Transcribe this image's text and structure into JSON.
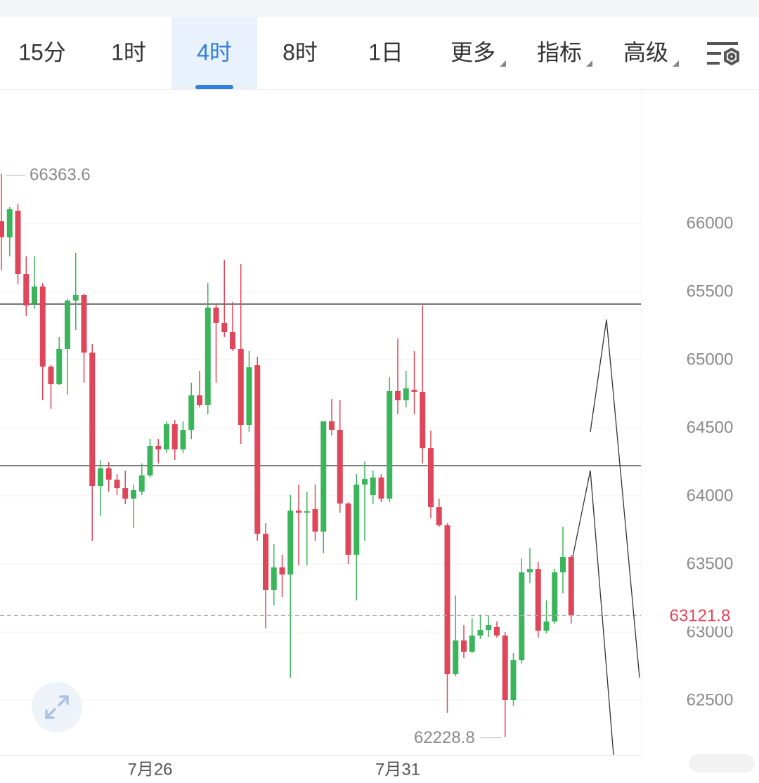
{
  "tabs": [
    "15分",
    "1时",
    "4时",
    "8时",
    "1日",
    "更多",
    "指标",
    "高级"
  ],
  "active_tab": 2,
  "chart_data": {
    "type": "candlestick",
    "categories": [
      null,
      null,
      null,
      null,
      null,
      null,
      null,
      null,
      null,
      null,
      null,
      null,
      null,
      null,
      null,
      null,
      null,
      null,
      "7月26",
      null,
      null,
      null,
      null,
      null,
      null,
      null,
      null,
      null,
      null,
      null,
      null,
      null,
      null,
      null,
      null,
      null,
      null,
      null,
      null,
      null,
      null,
      null,
      null,
      null,
      null,
      null,
      null,
      null,
      "7月31",
      null,
      null,
      null,
      null,
      null,
      null,
      null,
      null,
      null,
      null,
      null,
      null,
      null,
      null,
      null,
      null,
      null,
      null,
      null,
      null,
      null
    ],
    "open": [
      66015,
      65897,
      66092,
      65628,
      65412,
      65536,
      64948,
      64819,
      65077,
      65433,
      65474,
      65051,
      64072,
      64201,
      64118,
      64056,
      63979,
      64031,
      64149,
      64366,
      64340,
      64525,
      64340,
      64484,
      64737,
      64665,
      65381,
      65268,
      65201,
      65077,
      64520,
      64958,
      63721,
      63309,
      63474,
      63422,
      63891,
      63876,
      63902,
      63737,
      64546,
      64484,
      63943,
      63567,
      64082,
      64005,
      64134,
      63979,
      64768,
      64701,
      64778,
      64763,
      64350,
      63917,
      63783,
      62690,
      62938,
      62855,
      62974,
      63015,
      63036,
      62974,
      62500,
      62793,
      63438,
      63463,
      63010,
      63077,
      63438,
      63551
    ],
    "high": [
      66363.6,
      66118,
      66144,
      65757,
      65757,
      65561,
      64958,
      65165,
      65448,
      65783,
      65484,
      65113,
      64263,
      64247,
      64159,
      64185,
      64082,
      64237,
      64417,
      64417,
      64546,
      64556,
      64546,
      64830,
      64917,
      65561,
      65412,
      65732,
      65422,
      65701,
      65062,
      65020,
      63799,
      63644,
      63567,
      64005,
      64082,
      64031,
      64082,
      64546,
      64711,
      64701,
      63953,
      64159,
      64252,
      64185,
      64159,
      64871,
      65154,
      64917,
      65062,
      65397,
      64479,
      63979,
      63799,
      63268,
      63051,
      63103,
      63128,
      63118,
      63077,
      63000,
      62845,
      63541,
      63618,
      63515,
      63232,
      63463,
      63773,
      63567
    ],
    "low": [
      65654,
      65757,
      65551,
      65319,
      65371,
      64701,
      64639,
      64814,
      64742,
      65216,
      64830,
      63670,
      63850,
      64031,
      64005,
      63938,
      63762,
      64005,
      64134,
      64237,
      64314,
      64263,
      64314,
      64417,
      64649,
      64598,
      64830,
      65165,
      65062,
      64381,
      64469,
      63670,
      63025,
      63195,
      63257,
      62664,
      63489,
      63489,
      63670,
      63577,
      64443,
      63876,
      63500,
      63232,
      63670,
      63938,
      63953,
      63953,
      64598,
      64649,
      64598,
      64237,
      63835,
      63773,
      62407,
      62675,
      62809,
      62845,
      62948,
      62963,
      62958,
      62228.8,
      62458,
      62768,
      63360,
      62958,
      62989,
      63061,
      63283,
      63061
    ],
    "close": [
      65897,
      66103,
      65628,
      65397,
      65536,
      64948,
      64819,
      65077,
      65433,
      65474,
      65051,
      64072,
      64201,
      64118,
      64056,
      63979,
      64041,
      64149,
      64366,
      64340,
      64525,
      64340,
      64484,
      64737,
      64665,
      65381,
      65268,
      65201,
      65077,
      64520,
      64943,
      63721,
      63309,
      63474,
      63422,
      63891,
      63876,
      63886,
      63737,
      64546,
      64484,
      63943,
      63567,
      64082,
      64123,
      64134,
      63979,
      64768,
      64701,
      64788,
      64763,
      64350,
      63917,
      63783,
      62690,
      62938,
      62855,
      62974,
      63015,
      63051,
      62974,
      62500,
      62793,
      63438,
      63463,
      63010,
      63077,
      63438,
      63551,
      63121.8
    ],
    "up_color": "#3bb55b",
    "down_color": "#e0465a",
    "ylim": [
      62098,
      66979
    ],
    "yticks": [
      62500,
      63000,
      63500,
      64000,
      64500,
      65000,
      65500,
      66000
    ],
    "grid": true,
    "reference_lines": [
      65407,
      64221
    ]
  }
}
